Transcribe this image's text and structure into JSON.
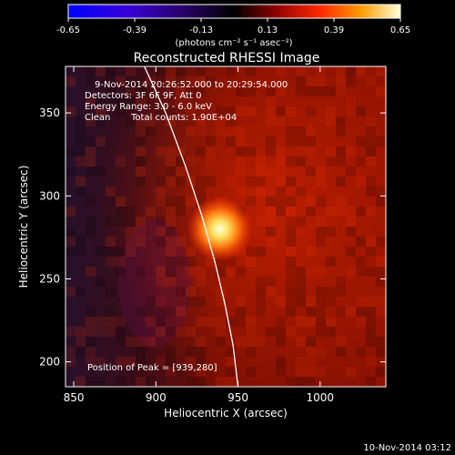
{
  "colorbar": {
    "ticks": [
      "-0.65",
      "-0.39",
      "-0.13",
      "0.13",
      "0.39",
      "0.65"
    ],
    "tick_values": [
      -0.65,
      -0.39,
      -0.13,
      0.13,
      0.39,
      0.65
    ],
    "range": [
      -0.65,
      0.65
    ],
    "unit_label": "(photons cm⁻² s⁻¹ asec⁻²)"
  },
  "chart_data": {
    "type": "heatmap",
    "title": "Reconstructed RHESSI Image",
    "xlabel": "Heliocentric X (arcsec)",
    "ylabel": "Heliocentric Y (arcsec)",
    "xlim": [
      845,
      1040
    ],
    "ylim": [
      185,
      378
    ],
    "x_ticks": [
      850,
      900,
      950,
      1000
    ],
    "y_ticks": [
      200,
      250,
      300,
      350
    ],
    "peak": {
      "x": 939,
      "y": 280
    },
    "limb_curve": [
      {
        "x": 893,
        "y": 378
      },
      {
        "x": 906,
        "y": 350
      },
      {
        "x": 918,
        "y": 318
      },
      {
        "x": 928,
        "y": 288
      },
      {
        "x": 936,
        "y": 260
      },
      {
        "x": 942,
        "y": 235
      },
      {
        "x": 947,
        "y": 210
      },
      {
        "x": 950,
        "y": 185
      }
    ],
    "annotations": {
      "time": "9-Nov-2014 20:26:52.000 to 20:29:54.000",
      "detectors": "Detectors: 3F 6F 9F, Att 0",
      "energy": "Energy Range: 3.0 - 6.0 keV",
      "method": "Clean",
      "counts": "Total counts: 1.90E+04",
      "peak_label": "Position of Peak = [939,280]"
    }
  },
  "footer": {
    "date": "10-Nov-2014 03:12"
  },
  "colors": {
    "background": "#000000",
    "text": "#ffffff",
    "limb": "#ffffff"
  }
}
